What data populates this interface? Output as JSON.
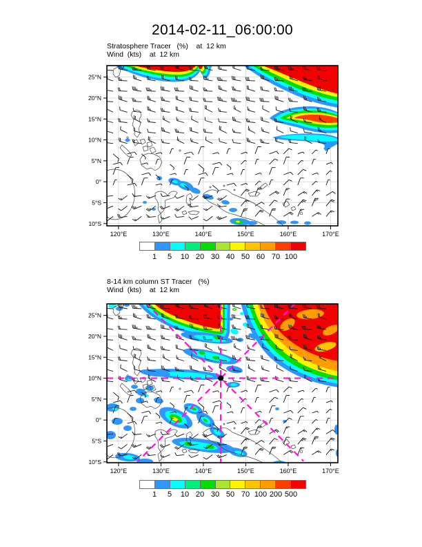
{
  "title": "2014-02-11_06:00:00",
  "panels": [
    {
      "subtitle_line1": "Stratosphere Tracer   (%)    at  12 km",
      "subtitle_line2": "Wind  (kts)    at  12 km"
    },
    {
      "subtitle_line1": "8-14 km column ST Tracer   (%)",
      "subtitle_line2": "Wind  (kts)    at  12 km"
    }
  ],
  "chart_data": [
    {
      "type": "heatmap",
      "title": "Stratosphere Tracer (%) at 12 km",
      "overlay": "wind barbs (kts) at 12 km, plotted every ~3 deg",
      "region": "Western Pacific / Maritime Continent",
      "x_axis": {
        "label": "longitude",
        "tick_labels": [
          "120°E",
          "130°E",
          "140°E",
          "150°E",
          "160°E",
          "170°E"
        ],
        "ticks": [
          120,
          130,
          140,
          150,
          160,
          170
        ],
        "range": [
          117.25,
          171.75
        ]
      },
      "y_axis": {
        "label": "latitude",
        "tick_labels": [
          "25°N",
          "20°N",
          "15°N",
          "10°N",
          "5°N",
          "0°",
          "5°S",
          "10°S"
        ],
        "ticks": [
          25,
          20,
          15,
          10,
          5,
          0,
          -5,
          -10
        ],
        "range": [
          -10.5,
          27.75
        ]
      },
      "grid": {
        "lon_step_deg": 10,
        "lat_step_deg": 5,
        "color": "#c9c9c9"
      },
      "colorbar": {
        "levels": [
          "1",
          "5",
          "10",
          "20",
          "30",
          "40",
          "50",
          "60",
          "70",
          "100"
        ],
        "colors": [
          "#ffffff",
          "#2e97ff",
          "#00ffff",
          "#00ee7c",
          "#00dd00",
          "#abe62e",
          "#fff400",
          "#ffc400",
          "#ff9c00",
          "#ff3d00",
          "#f30000"
        ]
      },
      "features": [
        {
          "name": "subtropical-intrusion",
          "desc": "tracer >100% filling the NE quadrant north of ~22N and a lobe along the top edge 120-140E, rainbow fringe (70-1%) on its southern rim"
        },
        {
          "name": "westward-tongue",
          "desc": "filament near 15-16N east of 157E, core 70-100% at 165-171E"
        },
        {
          "name": "filament-14n",
          "desc": "thin 1-10% streak near 13-14N east of 156E"
        },
        {
          "name": "equatorial-patches",
          "desc": "scattered 1-10% patches (blue/cyan) 0-3S between 130-150E and along 10S, small 20-40% speck near 148E,10S"
        }
      ],
      "wind": {
        "units": "kts",
        "bands": [
          {
            "lat": "18N-27N",
            "dir_from": "W-WNW",
            "speed_kts": "20-35"
          },
          {
            "lat": "7N-18N",
            "dir_from": "WNW",
            "speed_kts": "10-25"
          },
          {
            "lat": "2.5S-7N",
            "dir_from": "variable light E-NE",
            "speed_kts": "5-10"
          },
          {
            "lat": "south of 2.5S",
            "dir_from": "WSW (west half) / NE (east half)",
            "speed_kts": "10-25"
          }
        ]
      }
    },
    {
      "type": "heatmap",
      "title": "8-14 km column ST Tracer (%)",
      "overlay": "wind barbs (kts) at 12 km; magenta dashed flight-track radials",
      "region": "Western Pacific / Maritime Continent",
      "x_axis": {
        "label": "longitude",
        "tick_labels": [
          "120°E",
          "130°E",
          "140°E",
          "150°E",
          "160°E",
          "170°E"
        ],
        "ticks": [
          120,
          130,
          140,
          150,
          160,
          170
        ],
        "range": [
          117.25,
          171.75
        ]
      },
      "y_axis": {
        "label": "latitude",
        "tick_labels": [
          "25°N",
          "20°N",
          "15°N",
          "10°N",
          "5°N",
          "0°",
          "5°S",
          "10°S"
        ],
        "ticks": [
          25,
          20,
          15,
          10,
          5,
          0,
          -5,
          -10
        ],
        "range": [
          -10.6,
          27.75
        ]
      },
      "grid": {
        "lon_step_deg": 10,
        "lat_step_deg": 5,
        "color": "#c9c9c9"
      },
      "colorbar": {
        "levels": [
          "1",
          "5",
          "10",
          "20",
          "30",
          "50",
          "70",
          "100",
          "200",
          "500"
        ],
        "colors": [
          "#ffffff",
          "#2e97ff",
          "#00ffff",
          "#00ee7c",
          "#00dd00",
          "#abe62e",
          "#fff400",
          "#ffc400",
          "#ff9c00",
          "#ff3d00",
          "#f30000"
        ]
      },
      "features": [
        {
          "name": "deep-intrusion",
          "desc": "column tracer >500% over the whole NE quadrant, extending SW to ~12N,160E with orange 100-200% band and green/cyan fringe"
        },
        {
          "name": "left-lobe",
          "desc": "500% lobe along top edge 121-138E with sharp rainbow fringe sweeping to 15N,137E"
        },
        {
          "name": "bands-north-of-guam",
          "desc": "cyan/blue 1-10% filaments 11-16N between 135-145E"
        },
        {
          "name": "convective-wash",
          "desc": "many 1-30% blue/green cells with yellow cores over Philippines, Borneo, Sulawesi, New Guinea (0-8S, 118-150E)"
        }
      ],
      "flight_tracks": {
        "style": "magenta dashed radials",
        "color": "#ff10dd",
        "center": {
          "lon": 144.1,
          "lat": 10.0
        },
        "center_marker": "black filled dot",
        "lines": [
          "E-W through center",
          "N-S through center",
          "NE-SW diagonal",
          "NW-SE diagonal"
        ]
      },
      "wind": {
        "units": "kts",
        "note": "same 12 km wind field as upper panel"
      }
    }
  ]
}
